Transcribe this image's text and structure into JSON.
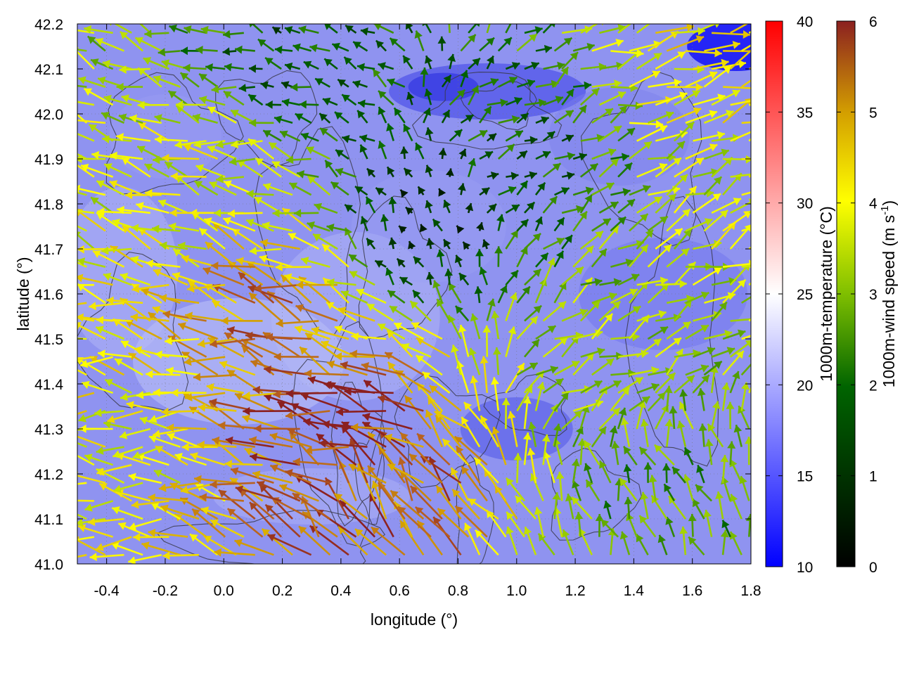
{
  "chart_data": {
    "type": "heatmap",
    "title": "",
    "xlabel": "longitude (°)",
    "ylabel": "latitude (°)",
    "xlim": [
      -0.5,
      1.8
    ],
    "ylim": [
      41.0,
      42.2
    ],
    "x_ticks": [
      "-0.4",
      "-0.2",
      "0.0",
      "0.2",
      "0.4",
      "0.6",
      "0.8",
      "1.0",
      "1.2",
      "1.4",
      "1.6",
      "1.8"
    ],
    "x_tick_values": [
      -0.4,
      -0.2,
      0.0,
      0.2,
      0.4,
      0.6,
      0.8,
      1.0,
      1.2,
      1.4,
      1.6,
      1.8
    ],
    "y_ticks": [
      "41.0",
      "41.1",
      "41.2",
      "41.3",
      "41.4",
      "41.5",
      "41.6",
      "41.7",
      "41.8",
      "41.9",
      "42.0",
      "42.1",
      "42.2"
    ],
    "y_tick_values": [
      41.0,
      41.1,
      41.2,
      41.3,
      41.4,
      41.5,
      41.6,
      41.7,
      41.8,
      41.9,
      42.0,
      42.1,
      42.2
    ],
    "grid": true,
    "layers": {
      "background": "1000m-temperature field (blue shades, roughly 12–20 °C)",
      "contours": "terrain height contours (dark grey)",
      "arrows": "1000m wind vectors coloured by wind speed"
    },
    "colorbars": [
      {
        "label": "1000m-temperature (°C)",
        "range": [
          10,
          40
        ],
        "ticks": [
          "10",
          "15",
          "20",
          "25",
          "30",
          "35",
          "40"
        ],
        "tick_values": [
          10,
          15,
          20,
          25,
          30,
          35,
          40
        ],
        "colors": [
          "#0000ff",
          "#ffffff",
          "#ff0000"
        ]
      },
      {
        "label_main": "1000m-wind speed (m s",
        "label_sup": "-1",
        "label_end": ")",
        "range": [
          0,
          6
        ],
        "ticks": [
          "0",
          "1",
          "2",
          "3",
          "4",
          "5",
          "6"
        ],
        "tick_values": [
          0,
          1,
          2,
          3,
          4,
          5,
          6
        ],
        "colors": [
          "#000000",
          "#006400",
          "#7fbf00",
          "#ffff00",
          "#d4a000",
          "#b86020",
          "#8b2020"
        ]
      }
    ],
    "arrow_regions": [
      {
        "lon": 0.0,
        "lat": 41.85,
        "u": -1.0,
        "v": 0.25,
        "speed": 3.8
      },
      {
        "lon": 0.2,
        "lat": 41.55,
        "u": -1.0,
        "v": 0.3,
        "speed": 5.2
      },
      {
        "lon": 0.45,
        "lat": 41.3,
        "u": -1.0,
        "v": 0.3,
        "speed": 6.0
      },
      {
        "lon": 0.55,
        "lat": 41.15,
        "u": -0.6,
        "v": 0.8,
        "speed": 5.5
      },
      {
        "lon": -0.3,
        "lat": 41.25,
        "u": -1.0,
        "v": 0.05,
        "speed": 4.0
      },
      {
        "lon": 0.7,
        "lat": 41.75,
        "u": -0.2,
        "v": 0.4,
        "speed": 1.0
      },
      {
        "lon": 1.0,
        "lat": 41.9,
        "u": 0.6,
        "v": 0.3,
        "speed": 1.8
      },
      {
        "lon": 1.3,
        "lat": 41.45,
        "u": 0.8,
        "v": 0.4,
        "speed": 3.2
      },
      {
        "lon": 1.5,
        "lat": 41.15,
        "u": -0.4,
        "v": 1.0,
        "speed": 2.6
      },
      {
        "lon": 1.6,
        "lat": 42.1,
        "u": 1.0,
        "v": 0.3,
        "speed": 4.2
      },
      {
        "lon": 0.3,
        "lat": 42.1,
        "u": -0.6,
        "v": 0.2,
        "speed": 1.6
      },
      {
        "lon": 1.65,
        "lat": 41.7,
        "u": 0.9,
        "v": 0.4,
        "speed": 3.6
      }
    ]
  }
}
